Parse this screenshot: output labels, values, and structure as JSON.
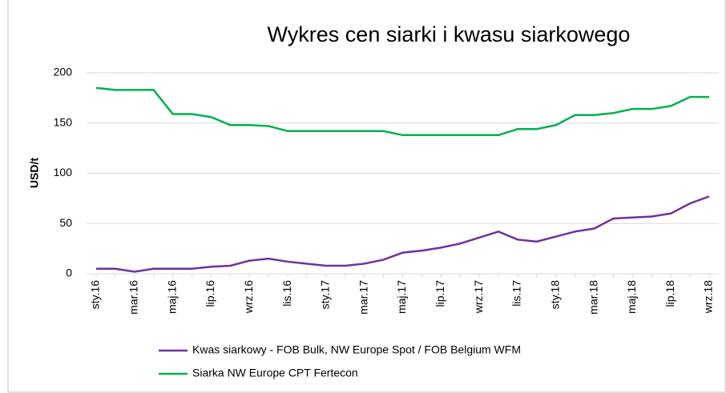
{
  "chart_data": {
    "type": "line",
    "title": "Wykres cen siarki i kwasu siarkowego",
    "ylabel": "USD/t",
    "categories": [
      "sty.16",
      null,
      "mar.16",
      null,
      "maj.16",
      null,
      "lip.16",
      null,
      "wrz.16",
      null,
      "lis.16",
      null,
      "sty.17",
      null,
      "mar.17",
      null,
      "maj.17",
      null,
      "lip.17",
      null,
      "wrz.17",
      null,
      "lis.17",
      null,
      "sty.18",
      null,
      "mar.18",
      null,
      "maj.18",
      null,
      "lip.18",
      null,
      "wrz.18"
    ],
    "series": [
      {
        "name": "Kwas siarkowy - FOB Bulk, NW Europe Spot  / FOB Belgium WFM",
        "color": "#7030a0",
        "values": [
          5,
          5,
          2,
          5,
          5,
          5,
          7,
          8,
          13,
          15,
          12,
          10,
          8,
          8,
          10,
          14,
          21,
          23,
          26,
          30,
          36,
          42,
          34,
          32,
          37,
          42,
          45,
          55,
          56,
          57,
          60,
          70,
          77
        ]
      },
      {
        "name": "Siarka NW Europe CPT Fertecon",
        "color": "#00b050",
        "values": [
          185,
          183,
          183,
          183,
          159,
          159,
          156,
          148,
          148,
          147,
          142,
          142,
          142,
          142,
          142,
          142,
          138,
          138,
          138,
          138,
          138,
          138,
          144,
          144,
          148,
          158,
          158,
          160,
          164,
          164,
          167,
          176,
          176
        ]
      }
    ],
    "ylim": [
      0,
      200
    ],
    "yticks": [
      0,
      50,
      100,
      150,
      200
    ],
    "grid": true
  }
}
